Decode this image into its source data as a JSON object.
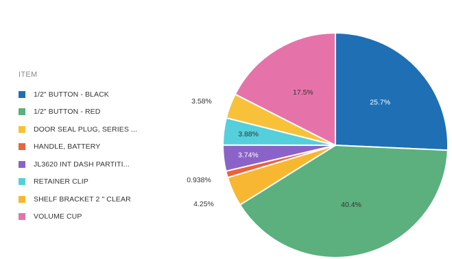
{
  "chart_data": {
    "type": "pie",
    "legend_title": "ITEM",
    "legend_position": "left",
    "start": "12 o'clock, clockwise",
    "slices": [
      {
        "label": "1/2\" BUTTON - BLACK",
        "value": 25.7,
        "value_label": "25.7%",
        "color": "#1f6fb5",
        "label_placement": "inside",
        "label_color": "#ffffff"
      },
      {
        "label": "1/2\" BUTTON - RED",
        "value": 40.4,
        "value_label": "40.4%",
        "color": "#5bb07d",
        "label_placement": "inside",
        "label_color": "#333333"
      },
      {
        "label": "SHELF BRACKET 2 \" CLEAR",
        "value": 4.25,
        "value_label": "4.25%",
        "color": "#f7b731",
        "label_placement": "outside",
        "label_color": "#333333"
      },
      {
        "label": "HANDLE, BATTERY",
        "value": 0.938,
        "value_label": "0.938%",
        "color": "#e8633f",
        "label_placement": "outside",
        "label_color": "#333333"
      },
      {
        "label": "JL3620 INT DASH PARTITI...",
        "value": 3.74,
        "value_label": "3.74%",
        "color": "#8b63c8",
        "label_placement": "inside",
        "label_color": "#ffffff"
      },
      {
        "label": "RETAINER CLIP",
        "value": 3.88,
        "value_label": "3.88%",
        "color": "#55cfdb",
        "label_placement": "inside",
        "label_color": "#333333"
      },
      {
        "label": "DOOR SEAL PLUG, SERIES ...",
        "value": 3.58,
        "value_label": "3.58%",
        "color": "#f7c23a",
        "label_placement": "outside",
        "label_color": "#333333"
      },
      {
        "label": "VOLUME CUP",
        "value": 17.5,
        "value_label": "17.5%",
        "color": "#e573aa",
        "label_placement": "inside",
        "label_color": "#333333"
      }
    ],
    "legend_order": [
      "1/2\" BUTTON - BLACK",
      "1/2\" BUTTON - RED",
      "DOOR SEAL PLUG, SERIES ...",
      "HANDLE, BATTERY",
      "JL3620 INT DASH PARTITI...",
      "RETAINER CLIP",
      "SHELF BRACKET 2 \" CLEAR",
      "VOLUME CUP"
    ]
  }
}
